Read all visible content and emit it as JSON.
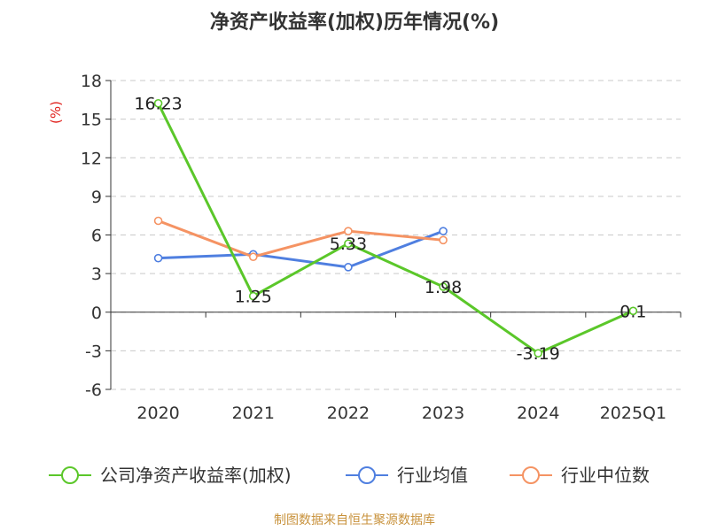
{
  "title": "净资产收益率(加权)历年情况(%)",
  "unit_label": "(%)",
  "source": "制图数据来自恒生聚源数据库",
  "chart_data": {
    "type": "line",
    "title": "净资产收益率(加权)历年情况(%)",
    "ylabel": "(%)",
    "ylim": [
      -6,
      18
    ],
    "yticks": [
      -6,
      -3,
      0,
      3,
      6,
      9,
      12,
      15,
      18
    ],
    "categories": [
      "2020",
      "2021",
      "2022",
      "2023",
      "2024",
      "2025Q1"
    ],
    "grid": true,
    "legend_position": "bottom",
    "series": [
      {
        "name": "公司净资产收益率(加权)",
        "color": "#5bc72a",
        "values": [
          16.23,
          1.25,
          5.33,
          1.98,
          -3.19,
          0.1
        ],
        "labels": [
          "16.23",
          "1.25",
          "5.33",
          "1.98",
          "-3.19",
          "0.1"
        ]
      },
      {
        "name": "行业均值",
        "color": "#4f7fe0",
        "values": [
          4.2,
          4.5,
          3.5,
          6.3,
          null,
          null
        ]
      },
      {
        "name": "行业中位数",
        "color": "#f59363",
        "values": [
          7.1,
          4.3,
          6.3,
          5.6,
          null,
          null
        ]
      }
    ]
  }
}
